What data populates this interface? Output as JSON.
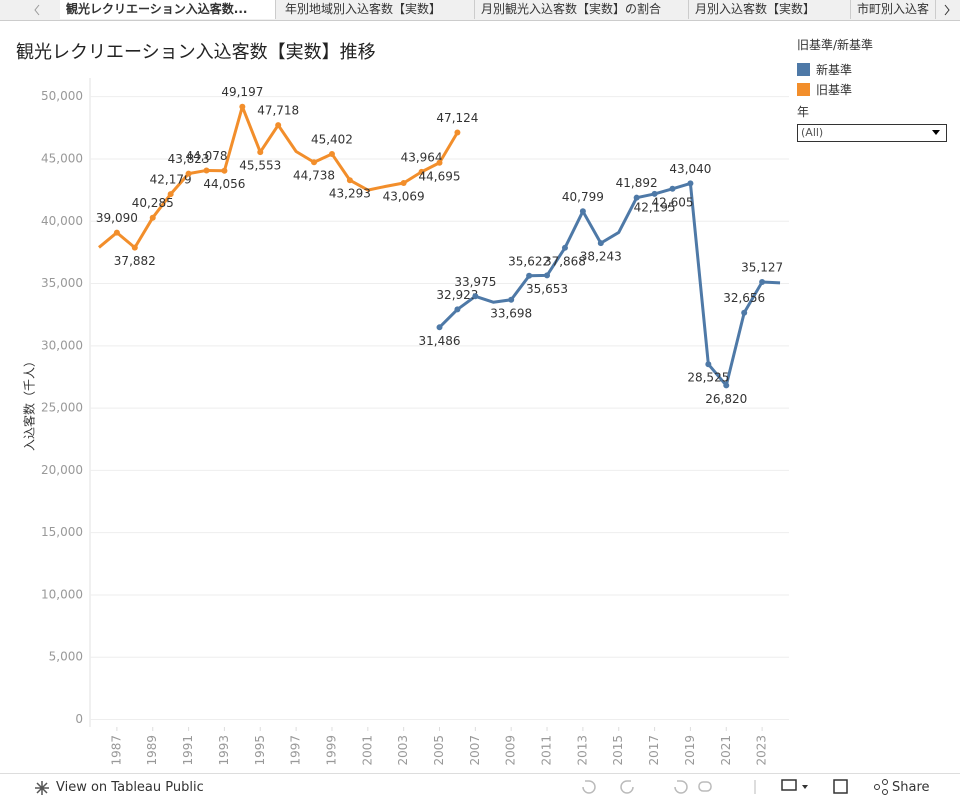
{
  "tabs": [
    "観光レクリエーション入込客数...",
    "年別地域別入込客数【実数】",
    "月別観光入込客数【実数】の割合",
    "月別入込客数【実数】",
    "市町別入込客"
  ],
  "filter": {
    "label": "年",
    "value": "(All)"
  },
  "toolbar": {
    "view": "View on Tableau Public",
    "share": "Share"
  },
  "chart_data": {
    "type": "line",
    "title": "観光レクリエーション入込客数【実数】推移",
    "y_label": "入込客数（千人）",
    "legend_title": "旧基準/新基準",
    "grid": true,
    "x": [
      1986,
      1987,
      1988,
      1989,
      1990,
      1991,
      1992,
      1993,
      1994,
      1995,
      1996,
      1997,
      1998,
      1999,
      2000,
      2001,
      2002,
      2003,
      2004,
      2005,
      2006,
      2007,
      2008,
      2009,
      2010,
      2011,
      2012,
      2013,
      2014,
      2015,
      2016,
      2017,
      2018,
      2019,
      2020,
      2021,
      2022,
      2023,
      2024
    ],
    "xlim": [
      1985.5,
      2024.5
    ],
    "xticks": [
      1987,
      1989,
      1991,
      1993,
      1995,
      1997,
      1999,
      2001,
      2003,
      2005,
      2007,
      2009,
      2011,
      2013,
      2015,
      2017,
      2019,
      2021,
      2023
    ],
    "ylim": [
      -600,
      51500
    ],
    "yticks": [
      0,
      {
        "value": 5000,
        "label": "5,000"
      },
      {
        "value": 10000,
        "label": "10,000"
      },
      {
        "value": 15000,
        "label": "15,000"
      },
      {
        "value": 20000,
        "label": "20,000"
      },
      {
        "value": 25000,
        "label": "25,000"
      },
      {
        "value": 30000,
        "label": "30,000"
      },
      {
        "value": 35000,
        "label": "35,000"
      },
      {
        "value": 40000,
        "label": "40,000"
      },
      {
        "value": 45000,
        "label": "45,000"
      },
      {
        "value": 50000,
        "label": "50,000"
      }
    ],
    "series": [
      {
        "name": "新基準",
        "color": "#4e79a7",
        "values": [
          null,
          null,
          null,
          null,
          null,
          null,
          null,
          null,
          null,
          null,
          null,
          null,
          null,
          null,
          null,
          null,
          null,
          null,
          null,
          31486,
          32923,
          33975,
          33500,
          33698,
          35622,
          35653,
          37868,
          40799,
          38243,
          39100,
          41892,
          42195,
          42605,
          43040,
          28525,
          26820,
          32656,
          35127,
          35050
        ],
        "value_labels": [
          null,
          null,
          null,
          null,
          null,
          null,
          null,
          null,
          null,
          null,
          null,
          null,
          null,
          null,
          null,
          null,
          null,
          null,
          null,
          "31,486",
          "32,923",
          "33,975",
          null,
          "33,698",
          "35,622",
          "35,653",
          "37,868",
          "40,799",
          "38,243",
          null,
          "41,892",
          "42,195",
          "42,605",
          "43,040",
          "28,525",
          "26,820",
          "32,656",
          "35,127",
          null
        ]
      },
      {
        "name": "旧基準",
        "color": "#f28e2b",
        "values": [
          37900,
          39090,
          37882,
          40285,
          42179,
          43823,
          44078,
          44056,
          49197,
          45553,
          47718,
          45600,
          44738,
          45402,
          43293,
          42500,
          42800,
          43069,
          43964,
          44695,
          47124,
          null,
          null,
          null,
          null,
          null,
          null,
          null,
          null,
          null,
          null,
          null,
          null,
          null,
          null,
          null,
          null,
          null,
          null
        ],
        "value_labels": [
          null,
          "39,090",
          "37,882",
          "40,285",
          "42,179",
          "43,823",
          "44,078",
          "44,056",
          "49,197",
          "45,553",
          "47,718",
          null,
          "44,738",
          "45,402",
          "43,293",
          null,
          null,
          "43,069",
          "43,964",
          "44,695",
          "47,124",
          null,
          null,
          null,
          null,
          null,
          null,
          null,
          null,
          null,
          null,
          null,
          null,
          null,
          null,
          null,
          null,
          null,
          null
        ]
      }
    ]
  }
}
